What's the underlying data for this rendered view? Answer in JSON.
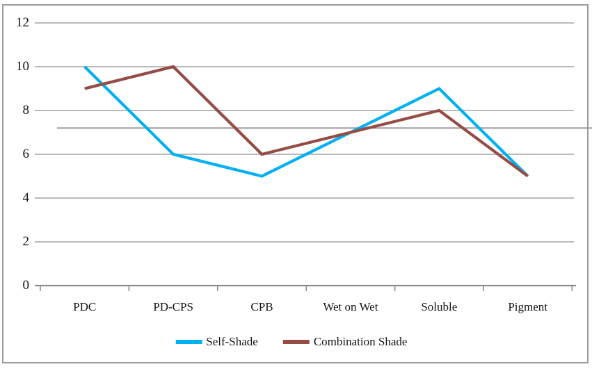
{
  "chart_data": {
    "type": "line",
    "categories": [
      "PDC",
      "PD-CPS",
      "CPB",
      "Wet on Wet",
      "Soluble",
      "Pigment"
    ],
    "series": [
      {
        "name": "Self-Shade",
        "color": "#00b0f0",
        "values": [
          10,
          6,
          5,
          7,
          9,
          5
        ]
      },
      {
        "name": "Combination Shade",
        "color": "#964b45",
        "values": [
          9,
          10,
          6,
          7,
          8,
          5
        ]
      }
    ],
    "y_ticks": [
      0,
      2,
      4,
      6,
      8,
      10,
      12
    ],
    "ylim": [
      0,
      12
    ],
    "grid": "horizontal",
    "legend_position": "bottom",
    "reference_line": {
      "value": 7.2
    }
  },
  "colors": {
    "gridline": "#a3a3a3",
    "axis": "#8f8f8f",
    "reference_line": "#9e9e9e",
    "frame_border": "#9b9b9b",
    "text": "#151515",
    "background": "#ffffff"
  }
}
